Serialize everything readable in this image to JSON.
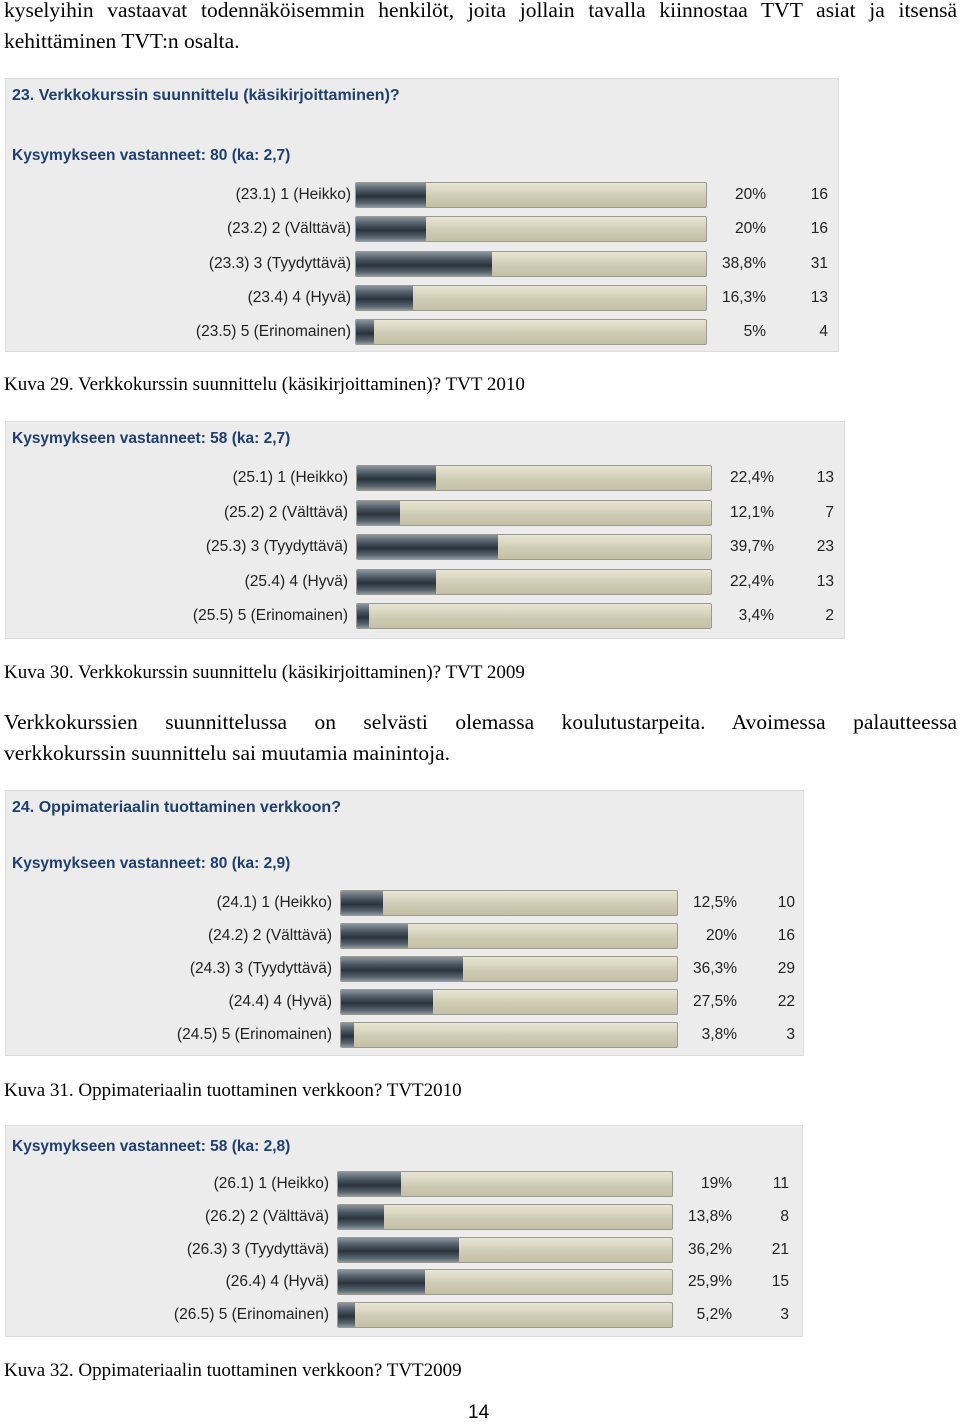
{
  "intro": {
    "line1": "kyselyihin vastaavat todennäköisemmin henkilöt, joita jollain tavalla kiinnostaa TVT asiat ja itsensä",
    "line2": "kehittäminen TVT:n osalta."
  },
  "chart_data": [
    {
      "type": "bar",
      "title": "23. Verkkokurssin suunnittelu (käsikirjoittaminen)?",
      "subtitle": "Kysymykseen vastanneet: 80 (ka: 2,7)",
      "categories": [
        "(23.1) 1 (Heikko)",
        "(23.2) 2 (Välttävä)",
        "(23.3) 3 (Tyydyttävä)",
        "(23.4) 4 (Hyvä)",
        "(23.5) 5 (Erinomainen)"
      ],
      "values": [
        20,
        20,
        38.8,
        16.3,
        5
      ],
      "percent_labels": [
        "20%",
        "20%",
        "38,8%",
        "16,3%",
        "5%"
      ],
      "counts": [
        "16",
        "16",
        "31",
        "13",
        "4"
      ],
      "ylim": [
        0,
        100
      ]
    },
    {
      "type": "bar",
      "title": "",
      "subtitle": "Kysymykseen vastanneet: 58 (ka: 2,7)",
      "categories": [
        "(25.1) 1 (Heikko)",
        "(25.2) 2 (Välttävä)",
        "(25.3) 3 (Tyydyttävä)",
        "(25.4) 4 (Hyvä)",
        "(25.5) 5 (Erinomainen)"
      ],
      "values": [
        22.4,
        12.1,
        39.7,
        22.4,
        3.4
      ],
      "percent_labels": [
        "22,4%",
        "12,1%",
        "39,7%",
        "22,4%",
        "3,4%"
      ],
      "counts": [
        "13",
        "7",
        "23",
        "13",
        "2"
      ],
      "ylim": [
        0,
        100
      ]
    },
    {
      "type": "bar",
      "title": "24. Oppimateriaalin tuottaminen verkkoon?",
      "subtitle": "Kysymykseen vastanneet: 80 (ka: 2,9)",
      "categories": [
        "(24.1) 1 (Heikko)",
        "(24.2) 2 (Välttävä)",
        "(24.3) 3 (Tyydyttävä)",
        "(24.4) 4 (Hyvä)",
        "(24.5) 5 (Erinomainen)"
      ],
      "values": [
        12.5,
        20,
        36.3,
        27.5,
        3.8
      ],
      "percent_labels": [
        "12,5%",
        "20%",
        "36,3%",
        "27,5%",
        "3,8%"
      ],
      "counts": [
        "10",
        "16",
        "29",
        "22",
        "3"
      ],
      "ylim": [
        0,
        100
      ]
    },
    {
      "type": "bar",
      "title": "",
      "subtitle": "Kysymykseen vastanneet: 58 (ka: 2,8)",
      "categories": [
        "(26.1) 1 (Heikko)",
        "(26.2) 2 (Välttävä)",
        "(26.3) 3 (Tyydyttävä)",
        "(26.4) 4 (Hyvä)",
        "(26.5) 5 (Erinomainen)"
      ],
      "values": [
        19,
        13.8,
        36.2,
        25.9,
        5.2
      ],
      "percent_labels": [
        "19%",
        "13,8%",
        "36,2%",
        "25,9%",
        "5,2%"
      ],
      "counts": [
        "11",
        "8",
        "21",
        "15",
        "3"
      ],
      "ylim": [
        0,
        100
      ]
    }
  ],
  "captions": {
    "fig29": "Kuva 29. Verkkokurssin suunnittelu (käsikirjoittaminen)? TVT 2010",
    "fig30": "Kuva 30. Verkkokurssin suunnittelu (käsikirjoittaminen)? TVT 2009",
    "fig31": "Kuva 31. Oppimateriaalin tuottaminen verkkoon? TVT2010",
    "fig32": "Kuva 32. Oppimateriaalin tuottaminen verkkoon? TVT2009"
  },
  "paragraph": {
    "line1": "Verkkokurssien suunnittelussa on selvästi olemassa koulutustarpeita. Avoimessa palautteessa",
    "line2": "verkkokurssin suunnittelu sai muutamia mainintoja."
  },
  "page_number": "14"
}
